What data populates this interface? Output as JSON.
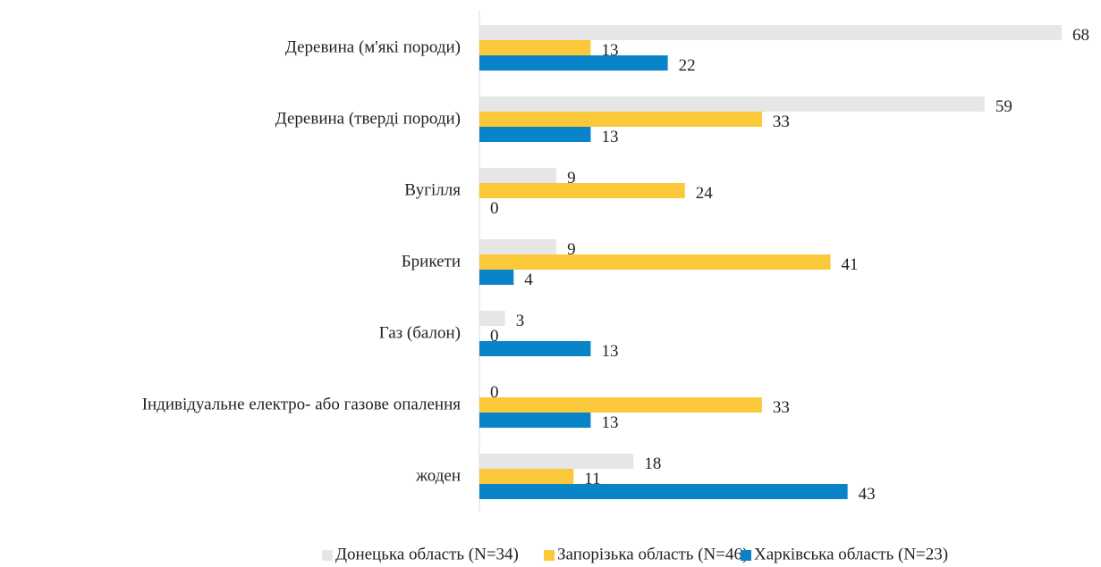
{
  "chart_data": {
    "type": "bar",
    "orientation": "horizontal",
    "categories": [
      "Деревина (м'які породи)",
      "Деревина (тверді породи)",
      "Вугілля",
      "Брикети",
      "Газ (балон)",
      "Індивідуальне електро- або газове опалення",
      "жоден"
    ],
    "series": [
      {
        "name": "Донецька область (N=34)",
        "color": "#e6e6e6",
        "values": [
          68,
          59,
          9,
          9,
          3,
          0,
          18
        ]
      },
      {
        "name": "Запорізька область (N=46)",
        "color": "#fbc83a",
        "values": [
          13,
          33,
          24,
          41,
          0,
          33,
          11
        ]
      },
      {
        "name": "Харківська область (N=23)",
        "color": "#0a84c8",
        "values": [
          22,
          13,
          0,
          4,
          13,
          13,
          43
        ]
      }
    ],
    "legend": "bottom"
  }
}
